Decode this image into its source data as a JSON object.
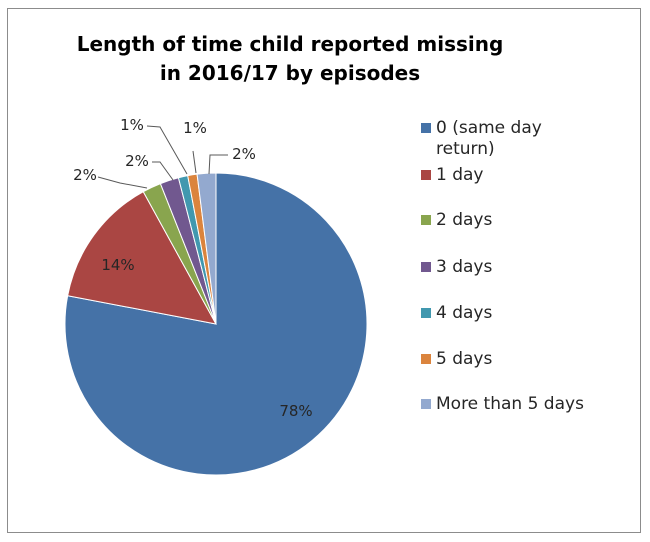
{
  "chart_data": {
    "type": "pie",
    "title": "Length of time child reported missing in 2016/17 by episodes",
    "title_lines": [
      "Length of time child reported missing",
      "in 2016/17 by episodes"
    ],
    "categories": [
      "0 (same day return)",
      "1 day",
      "2 days",
      "3 days",
      "4 days",
      "5 days",
      "More than 5 days"
    ],
    "values": [
      78,
      14,
      2,
      2,
      1,
      1,
      2
    ],
    "data_labels": [
      "78%",
      "14%",
      "2%",
      "2%",
      "1%",
      "1%",
      "2%"
    ],
    "colors": [
      "#4572a7",
      "#aa4643",
      "#89a54e",
      "#71588f",
      "#4198af",
      "#db843d",
      "#93a9cf"
    ],
    "legend_position": "right"
  },
  "legend": {
    "items": [
      {
        "label": "0 (same day return)",
        "color": "#4572a7"
      },
      {
        "label": "1 day",
        "color": "#aa4643"
      },
      {
        "label": "2 days",
        "color": "#89a54e"
      },
      {
        "label": "3 days",
        "color": "#71588f"
      },
      {
        "label": "4 days",
        "color": "#4198af"
      },
      {
        "label": "5 days",
        "color": "#db843d"
      },
      {
        "label": "More than 5 days",
        "color": "#93a9cf"
      }
    ]
  }
}
